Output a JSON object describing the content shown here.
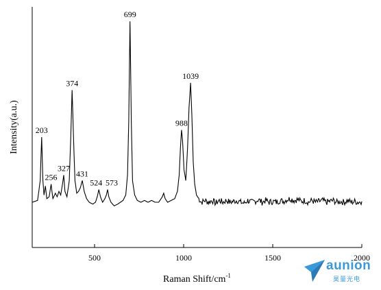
{
  "chart_data": {
    "type": "line",
    "xlabel": "Raman Shift/cm",
    "xlabel_sup": "-1",
    "ylabel": "Intensity(a.u.)",
    "xlim": [
      150,
      2000
    ],
    "ylim": [
      -0.25,
      1.08
    ],
    "x_ticks": [
      500,
      1000,
      1500,
      2000
    ],
    "y_tick_labels": false,
    "grid": false,
    "peaks": [
      {
        "x": 203,
        "y": 0.36,
        "label": "203"
      },
      {
        "x": 256,
        "y": 0.1,
        "label": "256"
      },
      {
        "x": 327,
        "y": 0.15,
        "label": "327"
      },
      {
        "x": 374,
        "y": 0.62,
        "label": "374"
      },
      {
        "x": 431,
        "y": 0.12,
        "label": "431"
      },
      {
        "x": 524,
        "y": 0.07,
        "label": "524"
      },
      {
        "x": 573,
        "y": 0.07,
        "label": "573"
      },
      {
        "x": 699,
        "y": 1.0,
        "label": "699"
      },
      {
        "x": 988,
        "y": 0.4,
        "label": "988"
      },
      {
        "x": 1039,
        "y": 0.66,
        "label": "1039"
      }
    ],
    "spectrum": [
      [
        150,
        0.0
      ],
      [
        180,
        0.01
      ],
      [
        195,
        0.12
      ],
      [
        203,
        0.36
      ],
      [
        210,
        0.12
      ],
      [
        216,
        0.04
      ],
      [
        224,
        0.09
      ],
      [
        232,
        0.02
      ],
      [
        245,
        0.03
      ],
      [
        256,
        0.1
      ],
      [
        266,
        0.02
      ],
      [
        280,
        0.05
      ],
      [
        290,
        0.03
      ],
      [
        300,
        0.06
      ],
      [
        310,
        0.04
      ],
      [
        320,
        0.1
      ],
      [
        327,
        0.15
      ],
      [
        334,
        0.06
      ],
      [
        345,
        0.03
      ],
      [
        358,
        0.12
      ],
      [
        366,
        0.35
      ],
      [
        374,
        0.62
      ],
      [
        381,
        0.38
      ],
      [
        390,
        0.12
      ],
      [
        400,
        0.05
      ],
      [
        410,
        0.06
      ],
      [
        420,
        0.08
      ],
      [
        431,
        0.12
      ],
      [
        442,
        0.06
      ],
      [
        455,
        0.02
      ],
      [
        470,
        0.0
      ],
      [
        490,
        -0.01
      ],
      [
        505,
        0.0
      ],
      [
        515,
        0.03
      ],
      [
        524,
        0.07
      ],
      [
        533,
        0.03
      ],
      [
        545,
        0.0
      ],
      [
        558,
        0.02
      ],
      [
        566,
        0.04
      ],
      [
        573,
        0.07
      ],
      [
        580,
        0.03
      ],
      [
        592,
        0.0
      ],
      [
        610,
        -0.02
      ],
      [
        630,
        -0.01
      ],
      [
        645,
        0.0
      ],
      [
        660,
        0.01
      ],
      [
        675,
        0.04
      ],
      [
        685,
        0.15
      ],
      [
        692,
        0.45
      ],
      [
        699,
        1.0
      ],
      [
        706,
        0.45
      ],
      [
        713,
        0.12
      ],
      [
        725,
        0.04
      ],
      [
        740,
        0.01
      ],
      [
        760,
        0.0
      ],
      [
        780,
        0.01
      ],
      [
        800,
        0.0
      ],
      [
        820,
        0.01
      ],
      [
        840,
        0.0
      ],
      [
        860,
        0.0
      ],
      [
        880,
        0.03
      ],
      [
        888,
        0.05
      ],
      [
        896,
        0.02
      ],
      [
        910,
        0.0
      ],
      [
        930,
        0.01
      ],
      [
        950,
        0.02
      ],
      [
        965,
        0.06
      ],
      [
        975,
        0.15
      ],
      [
        982,
        0.3
      ],
      [
        988,
        0.4
      ],
      [
        994,
        0.34
      ],
      [
        1002,
        0.18
      ],
      [
        1012,
        0.12
      ],
      [
        1022,
        0.3
      ],
      [
        1030,
        0.52
      ],
      [
        1039,
        0.66
      ],
      [
        1046,
        0.48
      ],
      [
        1054,
        0.22
      ],
      [
        1062,
        0.1
      ],
      [
        1072,
        0.04
      ],
      [
        1085,
        0.02
      ],
      [
        1100,
        0.0
      ],
      [
        1120,
        0.01
      ],
      [
        1140,
        0.0
      ],
      [
        1160,
        0.01
      ],
      [
        1180,
        -0.005
      ],
      [
        1200,
        0.01
      ],
      [
        1220,
        0.0
      ],
      [
        1240,
        0.01
      ],
      [
        1260,
        0.0
      ],
      [
        1280,
        0.005
      ],
      [
        1300,
        0.01
      ],
      [
        1320,
        0.0
      ],
      [
        1340,
        -0.005
      ],
      [
        1360,
        0.01
      ],
      [
        1380,
        0.0
      ],
      [
        1400,
        0.005
      ],
      [
        1420,
        0.015
      ],
      [
        1440,
        0.0
      ],
      [
        1460,
        0.01
      ],
      [
        1480,
        0.0
      ],
      [
        1500,
        0.005
      ],
      [
        1520,
        0.0
      ],
      [
        1540,
        0.01
      ],
      [
        1560,
        0.005
      ],
      [
        1580,
        0.015
      ],
      [
        1600,
        0.02
      ],
      [
        1620,
        0.01
      ],
      [
        1640,
        0.015
      ],
      [
        1660,
        0.005
      ],
      [
        1680,
        0.01
      ],
      [
        1700,
        0.0
      ],
      [
        1720,
        0.01
      ],
      [
        1740,
        0.0
      ],
      [
        1760,
        0.005
      ],
      [
        1780,
        0.01
      ],
      [
        1800,
        0.0
      ],
      [
        1820,
        0.005
      ],
      [
        1840,
        0.01
      ],
      [
        1860,
        0.0
      ],
      [
        1880,
        0.005
      ],
      [
        1900,
        0.0
      ],
      [
        1920,
        0.01
      ],
      [
        1940,
        0.0
      ],
      [
        1960,
        0.005
      ],
      [
        1980,
        0.0
      ],
      [
        2000,
        0.005
      ]
    ]
  },
  "watermark": {
    "brand": "aunion",
    "sub": "昊量光电",
    "colors": {
      "primary": "#3a9ad9",
      "secondary": "#2b7ab8"
    }
  }
}
